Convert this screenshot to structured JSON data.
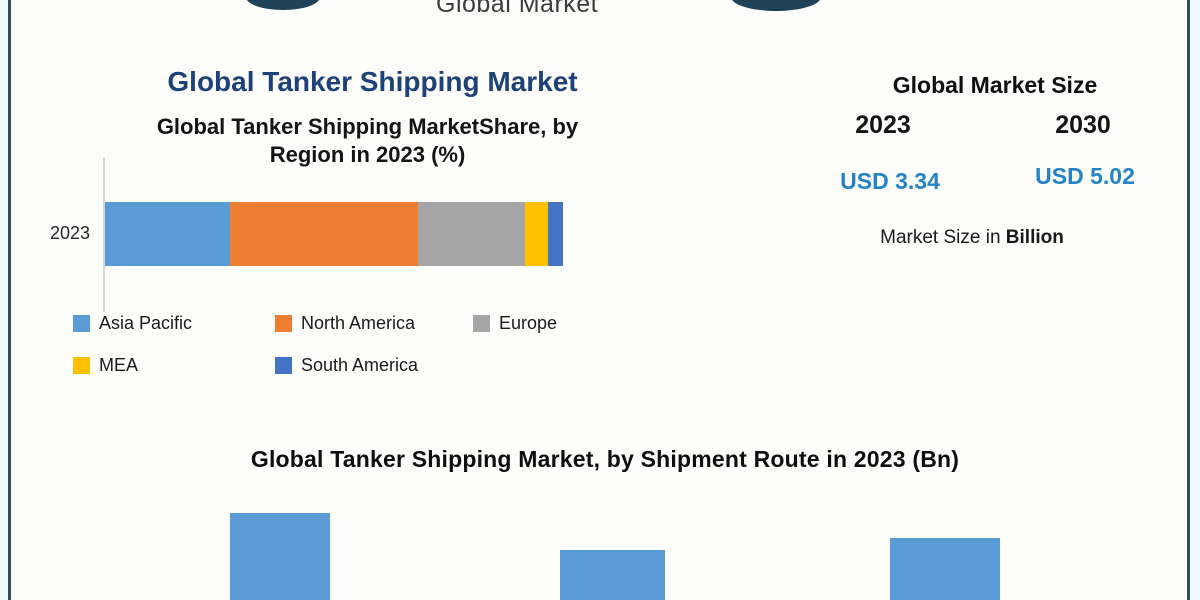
{
  "page": {
    "header": {
      "brand_text": "Global Market"
    },
    "left_panel": {
      "title": "Global Tanker Shipping Market",
      "chart_title_line1": "Global Tanker Shipping MarketShare, by",
      "chart_title_line2": "Region in 2023 (%)",
      "axis_label": "2023",
      "legend": [
        {
          "label": "Asia Pacific",
          "color": "#5B9BD5"
        },
        {
          "label": "North America",
          "color": "#ED7D31"
        },
        {
          "label": "Europe",
          "color": "#A5A5A5"
        },
        {
          "label": "MEA",
          "color": "#FFC000"
        },
        {
          "label": "South America",
          "color": "#4472C4"
        }
      ]
    },
    "right_panel": {
      "title": "Global Market Size",
      "year_start": "2023",
      "year_end": "2030",
      "value_start": "USD 3.34",
      "value_end": "USD 5.02",
      "value_color": "#2383C4",
      "unit_prefix": "Market Size in ",
      "unit_bold": "Billion"
    },
    "bottom_panel": {
      "title": "Global Tanker Shipping Market, by Shipment Route  in 2023 (Bn)"
    }
  },
  "chart_data": [
    {
      "type": "bar",
      "orientation": "horizontal-stacked",
      "title": "Global Tanker Shipping MarketShare, by Region in 2023 (%)",
      "categories": [
        "2023"
      ],
      "series": [
        {
          "name": "Asia Pacific",
          "values": [
            27.3
          ],
          "color": "#5B9BD5"
        },
        {
          "name": "North America",
          "values": [
            41.0
          ],
          "color": "#ED7D31"
        },
        {
          "name": "Europe",
          "values": [
            23.4
          ],
          "color": "#A5A5A5"
        },
        {
          "name": "MEA",
          "values": [
            5.1
          ],
          "color": "#FFC000"
        },
        {
          "name": "South America",
          "values": [
            3.2
          ],
          "color": "#4472C4"
        }
      ],
      "xlim": [
        0,
        100
      ],
      "grid": false,
      "legend_position": "bottom"
    },
    {
      "type": "bar",
      "title": "Global Tanker Shipping Market, by Shipment Route  in 2023 (Bn)",
      "categories": [
        "",
        "",
        ""
      ],
      "values": [
        87,
        50,
        62
      ],
      "color": "#5B9BD5",
      "note": "chart cut off at bottom edge of screenshot; values are visible bar heights in px, category/value labels not visible"
    }
  ]
}
